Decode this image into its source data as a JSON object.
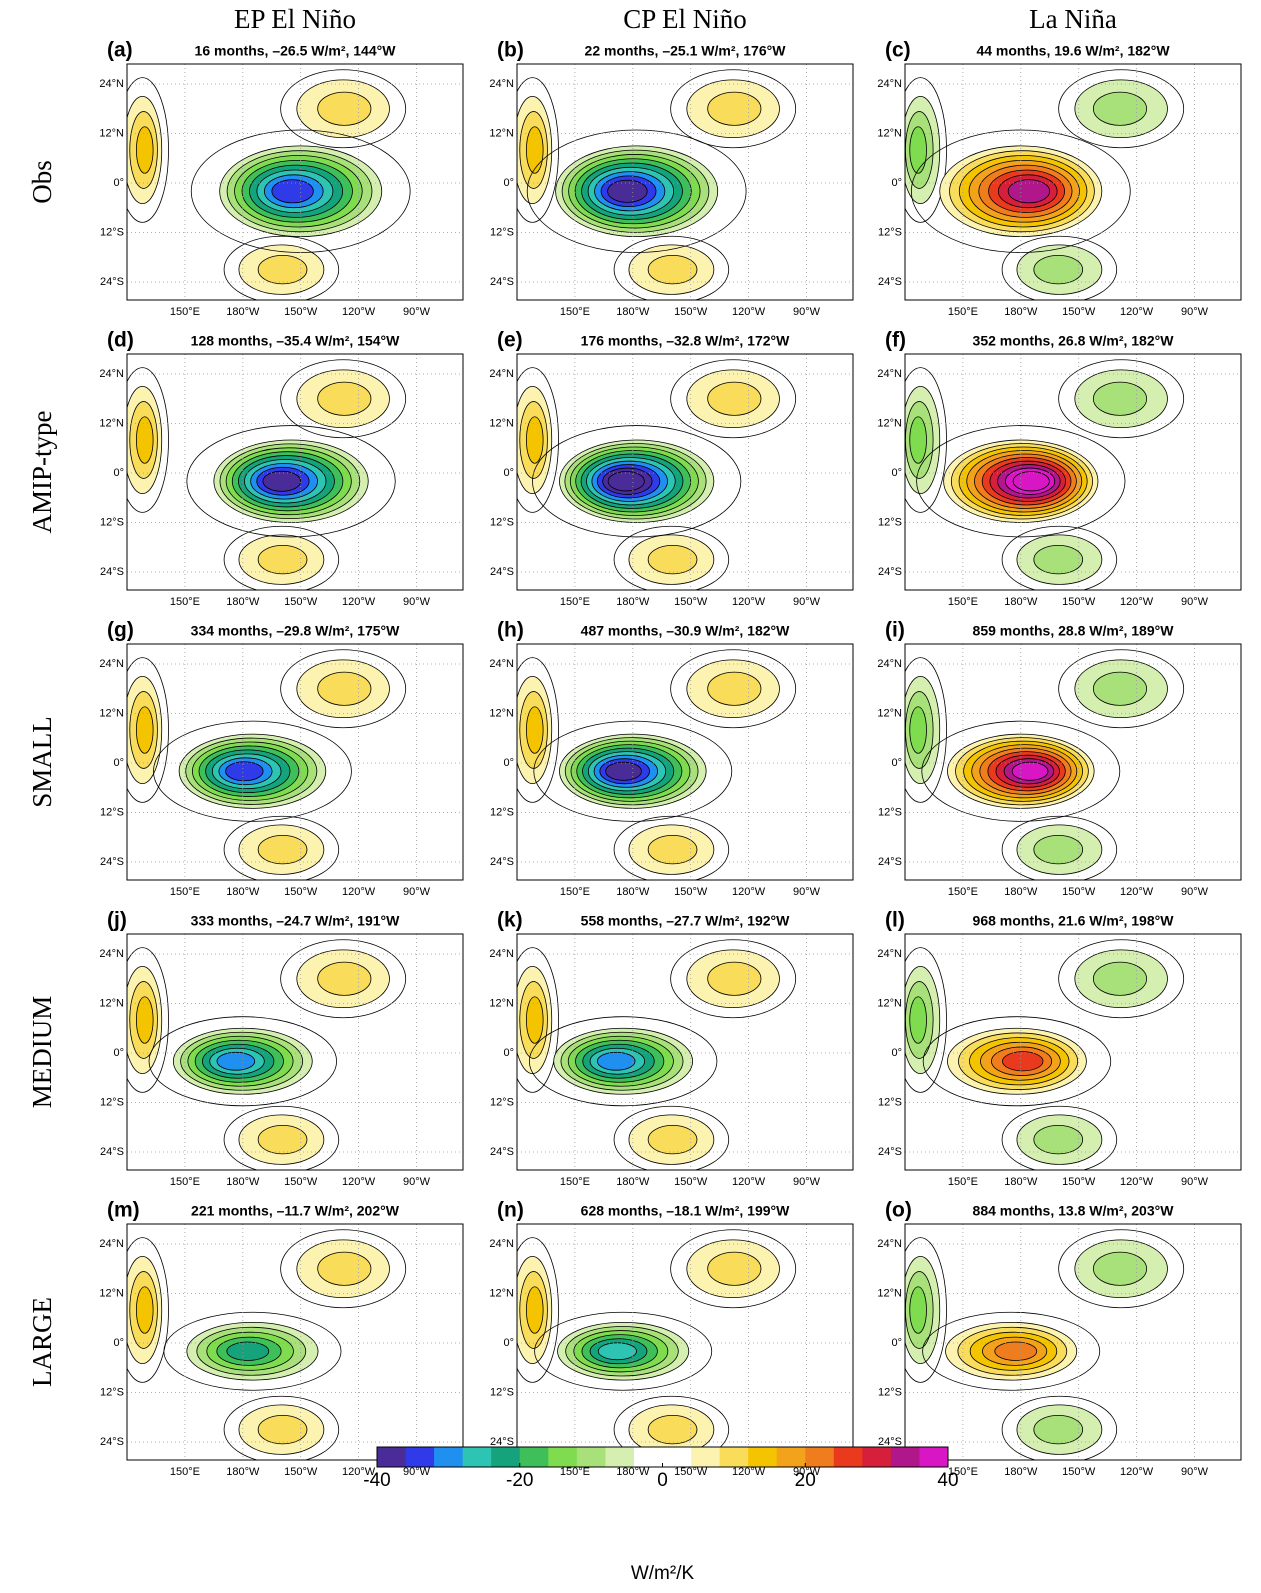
{
  "columns": [
    "EP El Niño",
    "CP El Niño",
    "La Niña"
  ],
  "rows": [
    "Obs",
    "AMIP-type",
    "SMALL",
    "MEDIUM",
    "LARGE"
  ],
  "panels": [
    {
      "letter": "(a)",
      "title": "16 months, –26.5 W/m², 144°W"
    },
    {
      "letter": "(b)",
      "title": "22 months, –25.1 W/m², 176°W"
    },
    {
      "letter": "(c)",
      "title": "44 months, 19.6 W/m², 182°W"
    },
    {
      "letter": "(d)",
      "title": "128 months, –35.4 W/m², 154°W"
    },
    {
      "letter": "(e)",
      "title": "176 months, –32.8 W/m², 172°W"
    },
    {
      "letter": "(f)",
      "title": "352 months, 26.8 W/m², 182°W"
    },
    {
      "letter": "(g)",
      "title": "334 months, –29.8 W/m², 175°W"
    },
    {
      "letter": "(h)",
      "title": "487 months, –30.9 W/m², 182°W"
    },
    {
      "letter": "(i)",
      "title": "859 months, 28.8 W/m², 189°W"
    },
    {
      "letter": "(j)",
      "title": "333 months, –24.7 W/m², 191°W"
    },
    {
      "letter": "(k)",
      "title": "558 months, –27.7 W/m², 192°W"
    },
    {
      "letter": "(l)",
      "title": "968 months, 21.6 W/m², 198°W"
    },
    {
      "letter": "(m)",
      "title": "221 months, –11.7 W/m², 202°W"
    },
    {
      "letter": "(n)",
      "title": "628 months, –18.1 W/m², 199°W"
    },
    {
      "letter": "(o)",
      "title": "884 months, 13.8 W/m², 203°W"
    }
  ],
  "map_axes": {
    "lat_labels": [
      "24°N",
      "12°N",
      "0°",
      "12°S",
      "24°S"
    ],
    "lon_labels": [
      "150°E",
      "180°W",
      "150°W",
      "120°W",
      "90°W"
    ]
  },
  "colorbar": {
    "lim": [
      -40,
      40
    ],
    "ticks": [
      -40,
      -20,
      0,
      20,
      40
    ],
    "label": "W/m²/K",
    "colors": [
      "#4a2c98",
      "#2f3ae8",
      "#1f8ff0",
      "#2ec4b4",
      "#14a37a",
      "#3fbf5a",
      "#7fdc4f",
      "#a8e07a",
      "#d4efb0",
      "#ffffff",
      "#ffffff",
      "#fdf3b0",
      "#f8dc5a",
      "#f5c400",
      "#f3a21c",
      "#ef7d1e",
      "#ea3a1e",
      "#d61f3a",
      "#b0178a",
      "#d916c4"
    ]
  }
}
